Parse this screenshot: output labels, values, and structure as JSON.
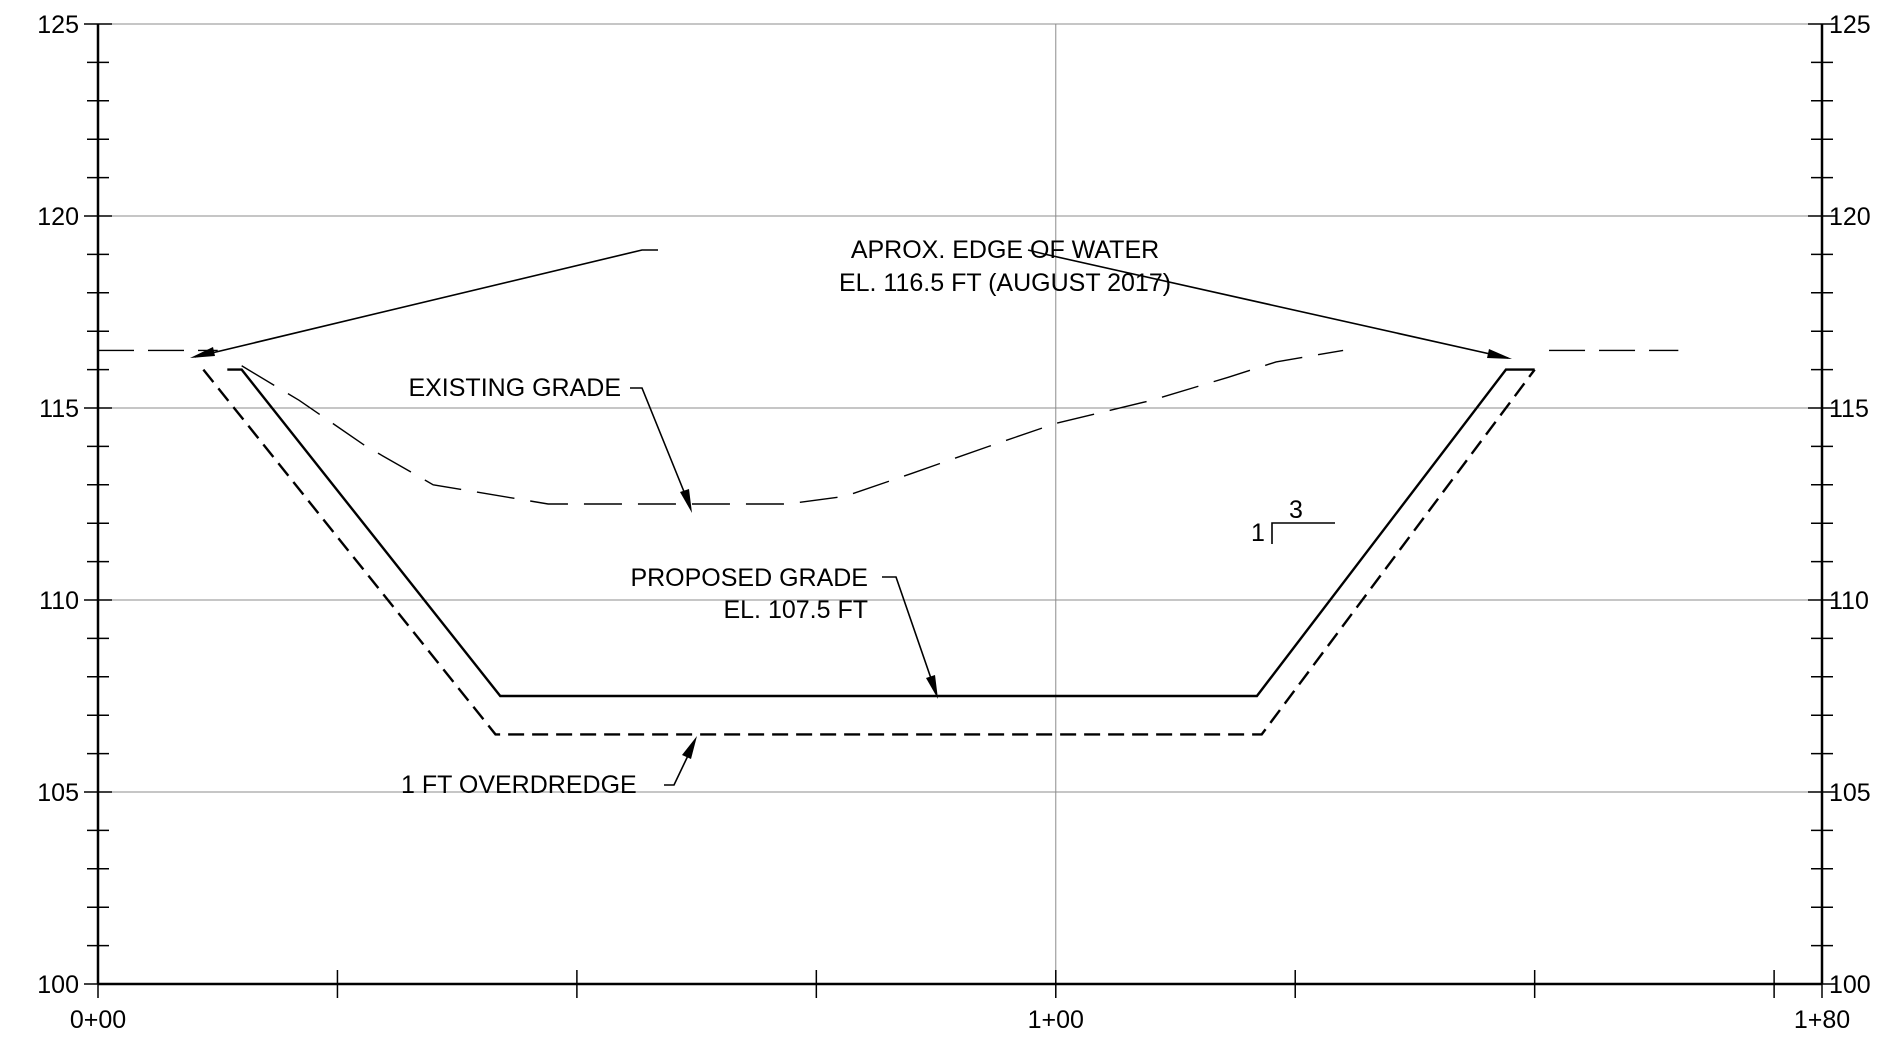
{
  "chart_data": {
    "type": "line",
    "x_ticks": [
      {
        "value": 0,
        "label": "0+00"
      },
      {
        "value": 100,
        "label": "1+00"
      },
      {
        "value": 180,
        "label": "1+80"
      }
    ],
    "xlim": [
      0,
      180
    ],
    "ylim": [
      100,
      125
    ],
    "y_major_ticks": [
      100,
      105,
      110,
      115,
      120,
      125
    ],
    "y_tick_labels": [
      "100",
      "105",
      "110",
      "115",
      "120",
      "125"
    ],
    "x_minor_tick_step": 25,
    "y_minor_tick_step": 1,
    "grid": true,
    "series": [
      {
        "key": "water_line",
        "style": "long-dash",
        "points": [
          [
            0,
            116.5
          ],
          [
            12.5,
            116.5
          ]
        ],
        "points_right": [
          [
            151.5,
            116.5
          ],
          [
            165,
            116.5
          ]
        ]
      },
      {
        "key": "existing_grade",
        "style": "dashed",
        "points": [
          [
            15,
            116.1
          ],
          [
            21,
            115.2
          ],
          [
            28,
            114.0
          ],
          [
            35,
            113.0
          ],
          [
            47,
            112.5
          ],
          [
            60,
            112.5
          ],
          [
            72,
            112.5
          ],
          [
            78,
            112.7
          ],
          [
            85,
            113.3
          ],
          [
            93,
            114.0
          ],
          [
            100,
            114.6
          ],
          [
            110,
            115.2
          ],
          [
            118,
            115.8
          ],
          [
            123,
            116.2
          ],
          [
            130,
            116.5
          ]
        ]
      },
      {
        "key": "proposed_grade",
        "style": "solid",
        "points": [
          [
            13.5,
            116
          ],
          [
            15,
            116
          ],
          [
            42,
            107.5
          ],
          [
            121,
            107.5
          ],
          [
            147,
            116
          ],
          [
            150,
            116
          ]
        ]
      },
      {
        "key": "overdredge",
        "style": "dashed",
        "points": [
          [
            11,
            116
          ],
          [
            41.5,
            106.5
          ],
          [
            121.5,
            106.5
          ],
          [
            150,
            116
          ]
        ]
      }
    ],
    "annotations": [
      {
        "key": "water_note",
        "lines": [
          "APROX. EDGE OF WATER",
          "EL. 116.5 FT (AUGUST 2017)"
        ]
      },
      {
        "key": "existing_note",
        "lines": [
          "EXISTING GRADE"
        ]
      },
      {
        "key": "proposed_note",
        "lines": [
          "PROPOSED GRADE",
          "EL. 107.5 FT"
        ]
      },
      {
        "key": "overdredge_note",
        "lines": [
          "1 FT OVERDREDGE"
        ]
      },
      {
        "key": "slope_note",
        "rise": "1",
        "run": "3"
      }
    ]
  }
}
